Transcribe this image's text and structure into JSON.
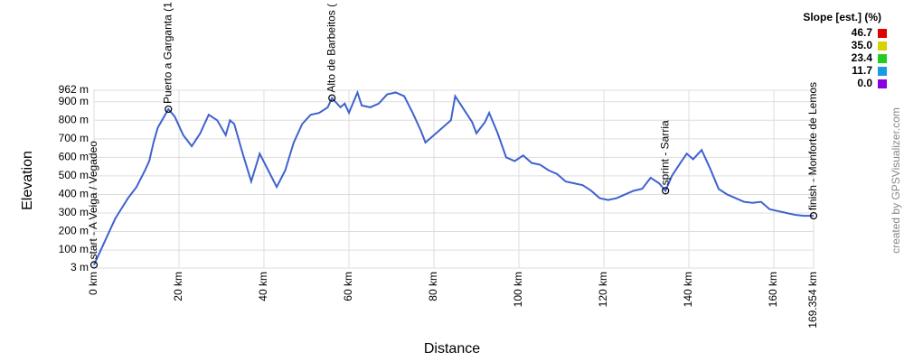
{
  "chart_data": {
    "type": "line",
    "x_label": "Distance",
    "y_label": "Elevation",
    "x": [
      0,
      2,
      5,
      8,
      10,
      12,
      13,
      14,
      15,
      17.5,
      19,
      21,
      23,
      25,
      27,
      29,
      31,
      32,
      33,
      35,
      37,
      39,
      41,
      43,
      45,
      47,
      49,
      51,
      53,
      55,
      56,
      58,
      59,
      60,
      62,
      63,
      65,
      67,
      69,
      71,
      73,
      75,
      77,
      78,
      80,
      82,
      84,
      85,
      87,
      89,
      90,
      92,
      93,
      95,
      97,
      99,
      101,
      103,
      105,
      107,
      109,
      111,
      113,
      115,
      117,
      119,
      121,
      123,
      125,
      127,
      129,
      131,
      133,
      134.5,
      136,
      138,
      139.5,
      141,
      143,
      145,
      147,
      149,
      151,
      153,
      155,
      157,
      159,
      161,
      163,
      165,
      167,
      169.354
    ],
    "series": [
      {
        "name": "Elevation",
        "color": "#3f62cf",
        "values": [
          20,
          120,
          270,
          380,
          440,
          530,
          580,
          680,
          760,
          860,
          820,
          720,
          660,
          730,
          830,
          800,
          720,
          800,
          780,
          620,
          470,
          620,
          530,
          440,
          530,
          680,
          780,
          830,
          840,
          870,
          920,
          870,
          890,
          840,
          950,
          880,
          870,
          890,
          940,
          950,
          930,
          840,
          740,
          680,
          720,
          760,
          800,
          930,
          860,
          790,
          730,
          790,
          840,
          730,
          600,
          580,
          610,
          570,
          560,
          530,
          510,
          470,
          460,
          450,
          420,
          380,
          370,
          380,
          400,
          420,
          430,
          490,
          460,
          420,
          500,
          570,
          620,
          590,
          640,
          540,
          430,
          400,
          380,
          360,
          355,
          360,
          320,
          310,
          300,
          290,
          285,
          285
        ]
      }
    ],
    "xlim": [
      0,
      169.354
    ],
    "xticks": [
      {
        "value": 0,
        "label": "0 km"
      },
      {
        "value": 20,
        "label": "20 km"
      },
      {
        "value": 40,
        "label": "40 km"
      },
      {
        "value": 60,
        "label": "60 km"
      },
      {
        "value": 80,
        "label": "80 km"
      },
      {
        "value": 100,
        "label": "100 km"
      },
      {
        "value": 120,
        "label": "120 km"
      },
      {
        "value": 140,
        "label": "140 km"
      },
      {
        "value": 160,
        "label": "160 km"
      },
      {
        "value": 169.354,
        "label": "169.354 km"
      }
    ],
    "ylim": [
      3,
      962
    ],
    "yticks": [
      {
        "value": 3,
        "label": "3 m"
      },
      {
        "value": 100,
        "label": "100 m"
      },
      {
        "value": 200,
        "label": "200 m"
      },
      {
        "value": 300,
        "label": "300 m"
      },
      {
        "value": 400,
        "label": "400 m"
      },
      {
        "value": 500,
        "label": "500 m"
      },
      {
        "value": 600,
        "label": "600 m"
      },
      {
        "value": 700,
        "label": "700 m"
      },
      {
        "value": 800,
        "label": "800 m"
      },
      {
        "value": 900,
        "label": "900 m"
      },
      {
        "value": 962,
        "label": "962 m"
      }
    ],
    "grid": true,
    "waypoints": [
      {
        "label": "start - A Veiga / Vegadeo",
        "x": 0,
        "elevation": 20
      },
      {
        "label": "Puerto a Garganta (1",
        "x": 17.5,
        "elevation": 860
      },
      {
        "label": "Alto de Barbeitos (",
        "x": 56,
        "elevation": 920
      },
      {
        "label": "sprint - Sarria",
        "x": 134.5,
        "elevation": 420
      },
      {
        "label": "finish - Monforte de Lemos",
        "x": 169.354,
        "elevation": 285
      }
    ],
    "slope_legend": {
      "title": "Slope [est.] (%)",
      "entries": [
        {
          "label": "46.7",
          "color": "#e00000"
        },
        {
          "label": "35.0",
          "color": "#d4d400"
        },
        {
          "label": "23.4",
          "color": "#22cc22"
        },
        {
          "label": "11.7",
          "color": "#1a9ae0"
        },
        {
          "label": "0.0",
          "color": "#8a00e0"
        }
      ]
    },
    "credit": "created by GPSVisualizer.com"
  }
}
